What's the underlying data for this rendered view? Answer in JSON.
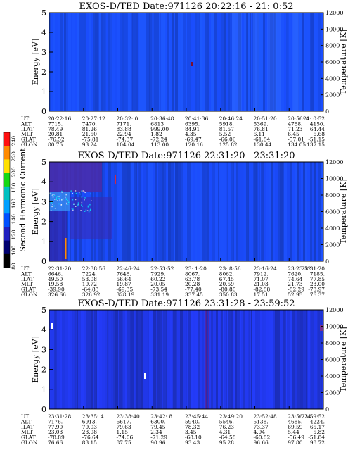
{
  "colorbar": {
    "label": "Second Harmonic Current",
    "ticks": [
      "240",
      "220",
      "200",
      "180",
      "160",
      "140",
      "120",
      "100",
      "80"
    ],
    "colors": [
      "#ff1010",
      "#ff8a00",
      "#ffe000",
      "#14d814",
      "#00c0c0",
      "#00a0ff",
      "#0050ff",
      "#2020c0",
      "#000070",
      "#000000"
    ]
  },
  "chart_data": [
    {
      "type": "heatmap",
      "title": "EXOS-D/TED   Date:971126  20:22:16 - 21: 0:52",
      "ylabel": "Energy [eV]",
      "ylabel_right": "Temperature [K]",
      "ylim": [
        0,
        5
      ],
      "ylim_right": [
        0,
        12000
      ],
      "yticks": [
        "0",
        "1",
        "2",
        "3",
        "4",
        "5"
      ],
      "yticks_right": [
        "0",
        "2000",
        "4000",
        "6000",
        "8000",
        "10000",
        "12000"
      ],
      "base_color": "#1a4cf0",
      "rows": [
        {
          "label": "UT",
          "values": [
            "20:22:16",
            "20:27:12",
            "20:32: 0",
            "20:36:48",
            "20:41:36",
            "20:46:24",
            "20:51:20",
            "20:56: 4",
            "21: 0:52"
          ]
        },
        {
          "label": "ALT",
          "values": [
            "7715.",
            "7470.",
            "7171.",
            "6813",
            "6395.",
            "5918.",
            "5369.",
            "4788.",
            "4150."
          ]
        },
        {
          "label": "ILAT",
          "values": [
            "78.49",
            "81.26",
            "83.88",
            "999.00",
            "84.91",
            "81.57",
            "76.81",
            "71.23",
            "64.44"
          ]
        },
        {
          "label": "MLT",
          "values": [
            "20.81",
            "21.50",
            "22.94",
            "1.82",
            "4.35",
            "5.52",
            "6.11",
            "6.45",
            "6.68"
          ]
        },
        {
          "label": "GLAT",
          "values": [
            "-76.52",
            "-75.81",
            "-74.37",
            "-72.24",
            "-69.47",
            "-66.06",
            "-61.84",
            "-57.01",
            "-51.15"
          ]
        },
        {
          "label": "GLON",
          "values": [
            "80.75",
            "93.24",
            "104.04",
            "113.00",
            "120.16",
            "125.82",
            "130.44",
            "134.05",
            "137.15"
          ]
        }
      ]
    },
    {
      "type": "heatmap",
      "title": "EXOS-D/TED   Date:971126  22:31:20 - 23:31:20",
      "ylabel": "Energy [eV]",
      "ylabel_right": "Temperature [K]",
      "ylim": [
        0,
        5
      ],
      "ylim_right": [
        0,
        12000
      ],
      "yticks": [
        "0",
        "1",
        "2",
        "3",
        "4",
        "5"
      ],
      "yticks_right": [
        "0",
        "2000",
        "4000",
        "6000",
        "8000",
        "10000",
        "12000"
      ],
      "base_color": "#1a48e8",
      "rows": [
        {
          "label": "UT",
          "values": [
            "22:31:20",
            "22:38:56",
            "22:46:24",
            "22:53:52",
            "23: 1:20",
            "23: 8:56",
            "23:16:24",
            "23:23:52",
            "23:31:20"
          ]
        },
        {
          "label": "ALT",
          "values": [
            "6646.",
            "7224.",
            "7648.",
            "7929.",
            "8067.",
            "8062.",
            "7912.",
            "7620.",
            "7185."
          ]
        },
        {
          "label": "ILAT",
          "values": [
            "49.50",
            "53.08",
            "56.64",
            "60.22",
            "63.78",
            "67.45",
            "71.07",
            "74.64",
            "77.85"
          ]
        },
        {
          "label": "MLT",
          "values": [
            "19.58",
            "19.72",
            "19.87",
            "20.05",
            "20.28",
            "20.59",
            "21.03",
            "21.73",
            "23.00"
          ]
        },
        {
          "label": "GLAT",
          "values": [
            "-39.90",
            "-64.83",
            "-69.35",
            "-73.54",
            "-77.40",
            "-80.80",
            "-82.88",
            "-82.29",
            "-78.97"
          ]
        },
        {
          "label": "GLON",
          "values": [
            "326.66",
            "326.92",
            "328.19",
            "331.19",
            "337.45",
            "350.83",
            "17.51",
            "52.95",
            "76.37"
          ]
        }
      ]
    },
    {
      "type": "heatmap",
      "title": "EXOS-D/TED   Date:971126  23:31:28 - 23:59:52",
      "ylabel": "Energy [eV]",
      "ylabel_right": "Temperature [K]",
      "ylim": [
        0,
        5
      ],
      "ylim_right": [
        0,
        12000
      ],
      "yticks": [
        "0",
        "1",
        "2",
        "3",
        "4",
        "5"
      ],
      "yticks_right": [
        "0",
        "2000",
        "4000",
        "6000",
        "8000",
        "10000",
        "12000"
      ],
      "base_color": "#2035d8",
      "rows": [
        {
          "label": "UT",
          "values": [
            "23:31:28",
            "23:35: 4",
            "23:38:40",
            "23:42: 8",
            "23:45:44",
            "23:49:20",
            "23:52:48",
            "23:56:24",
            "23:59:52"
          ]
        },
        {
          "label": "ALT",
          "values": [
            "7176.",
            "6913.",
            "6617.",
            "6300.",
            "5940.",
            "5546.",
            "5138.",
            "4685.",
            "4224."
          ]
        },
        {
          "label": "ILAT",
          "values": [
            "77.90",
            "79.03",
            "79.63",
            "79.45",
            "78.32",
            "76.23",
            "73.37",
            "69.59",
            "65.17"
          ]
        },
        {
          "label": "MLT",
          "values": [
            "23.03",
            "23.98",
            "1.15",
            "2.34",
            "3.45",
            "4.31",
            "4.94",
            "5.44",
            "5.82"
          ]
        },
        {
          "label": "GLAT",
          "values": [
            "-78.89",
            "-76.64",
            "-74.06",
            "-71.29",
            "-68.10",
            "-64.58",
            "-60.82",
            "-56.49",
            "-51.84"
          ]
        },
        {
          "label": "GLON",
          "values": [
            "76.66",
            "83.15",
            "87.75",
            "90.96",
            "93.43",
            "95.28",
            "96.66",
            "97.80",
            "98.72"
          ]
        }
      ]
    }
  ]
}
